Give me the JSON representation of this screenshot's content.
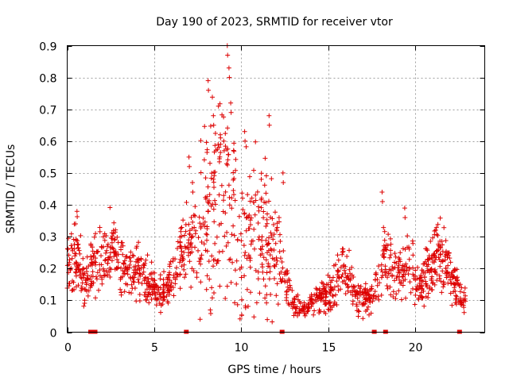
{
  "chart_data": {
    "type": "scatter",
    "title": "Day 190 of 2023, SRMTID for receiver vtor",
    "xlabel": "GPS time / hours",
    "ylabel": "SRMTID / TECUs",
    "xlim": [
      0,
      24
    ],
    "ylim": [
      0,
      0.9
    ],
    "x_ticks": [
      0,
      5,
      10,
      15,
      20
    ],
    "x_tick_labels": [
      "0",
      "5",
      "10",
      "15",
      "20"
    ],
    "y_ticks": [
      0,
      0.1,
      0.2,
      0.3,
      0.4,
      0.5,
      0.6,
      0.7,
      0.8,
      0.9
    ],
    "y_tick_labels": [
      "0",
      "0.1",
      "0.2",
      "0.3",
      "0.4",
      "0.5",
      "0.6",
      "0.7",
      "0.8",
      "0.9"
    ],
    "grid": true,
    "marker": "plus",
    "color": "#dd0000",
    "trend": [
      [
        0.0,
        0.18
      ],
      [
        0.3,
        0.24
      ],
      [
        0.6,
        0.25
      ],
      [
        1.0,
        0.17
      ],
      [
        1.4,
        0.2
      ],
      [
        1.8,
        0.24
      ],
      [
        2.2,
        0.22
      ],
      [
        2.6,
        0.27
      ],
      [
        3.0,
        0.23
      ],
      [
        3.3,
        0.18
      ],
      [
        3.6,
        0.2
      ],
      [
        4.0,
        0.19
      ],
      [
        4.4,
        0.18
      ],
      [
        4.8,
        0.15
      ],
      [
        5.2,
        0.12
      ],
      [
        5.5,
        0.14
      ],
      [
        5.8,
        0.13
      ],
      [
        6.2,
        0.2
      ],
      [
        6.6,
        0.26
      ],
      [
        7.0,
        0.28
      ],
      [
        7.4,
        0.3
      ],
      [
        7.8,
        0.33
      ],
      [
        8.2,
        0.38
      ],
      [
        8.6,
        0.42
      ],
      [
        9.0,
        0.45
      ],
      [
        9.4,
        0.4
      ],
      [
        9.8,
        0.3
      ],
      [
        10.2,
        0.3
      ],
      [
        10.6,
        0.32
      ],
      [
        11.0,
        0.3
      ],
      [
        11.4,
        0.28
      ],
      [
        11.8,
        0.25
      ],
      [
        12.2,
        0.22
      ],
      [
        12.6,
        0.15
      ],
      [
        13.0,
        0.09
      ],
      [
        13.4,
        0.07
      ],
      [
        13.8,
        0.08
      ],
      [
        14.2,
        0.1
      ],
      [
        14.6,
        0.12
      ],
      [
        15.0,
        0.12
      ],
      [
        15.4,
        0.15
      ],
      [
        15.8,
        0.2
      ],
      [
        16.2,
        0.18
      ],
      [
        16.6,
        0.12
      ],
      [
        17.0,
        0.11
      ],
      [
        17.4,
        0.11
      ],
      [
        17.8,
        0.15
      ],
      [
        18.2,
        0.24
      ],
      [
        18.6,
        0.22
      ],
      [
        19.0,
        0.18
      ],
      [
        19.4,
        0.22
      ],
      [
        19.8,
        0.2
      ],
      [
        20.2,
        0.15
      ],
      [
        20.6,
        0.18
      ],
      [
        21.0,
        0.2
      ],
      [
        21.4,
        0.24
      ],
      [
        21.8,
        0.22
      ],
      [
        22.2,
        0.15
      ],
      [
        22.6,
        0.12
      ],
      [
        22.8,
        0.11
      ]
    ],
    "spikes": [
      [
        8.1,
        0.79
      ],
      [
        8.4,
        0.68
      ],
      [
        8.8,
        0.62
      ],
      [
        9.2,
        0.9
      ],
      [
        9.3,
        0.83
      ],
      [
        9.4,
        0.72
      ],
      [
        10.2,
        0.63
      ],
      [
        11.6,
        0.68
      ],
      [
        12.4,
        0.5
      ],
      [
        18.1,
        0.44
      ],
      [
        19.4,
        0.39
      ],
      [
        7.0,
        0.55
      ],
      [
        7.2,
        0.47
      ],
      [
        9.0,
        0.6
      ]
    ],
    "zero_value_times": [
      1.35,
      1.6,
      6.85,
      12.35,
      17.65,
      18.3,
      22.55
    ],
    "x_range_of_data": [
      0.0,
      22.9
    ],
    "point_count": 1500
  }
}
